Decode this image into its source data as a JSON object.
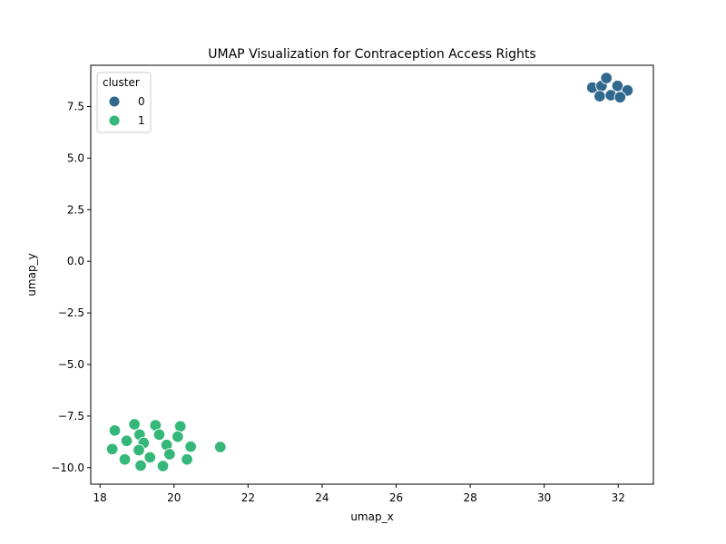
{
  "chart_data": {
    "type": "scatter",
    "title": "UMAP Visualization for Contraception Access Rights",
    "xlabel": "umap_x",
    "ylabel": "umap_y",
    "xlim": [
      17.75,
      32.95
    ],
    "ylim": [
      -10.8,
      9.5
    ],
    "x_ticks": [
      18,
      20,
      22,
      24,
      26,
      28,
      30,
      32
    ],
    "x_tick_labels": [
      "18",
      "20",
      "22",
      "24",
      "26",
      "28",
      "30",
      "32"
    ],
    "y_ticks": [
      -10,
      -7.5,
      -5,
      -2.5,
      0,
      2.5,
      5,
      7.5
    ],
    "y_tick_labels": [
      "−10.0",
      "−7.5",
      "−5.0",
      "−2.5",
      "0.0",
      "2.5",
      "5.0",
      "7.5"
    ],
    "grid": false,
    "legend": {
      "title": "cluster",
      "placement": "top-left",
      "entries": [
        "0",
        "1"
      ]
    },
    "series": [
      {
        "name": "0",
        "color": "#31688e",
        "points": [
          [
            31.3,
            8.42
          ],
          [
            31.55,
            8.5
          ],
          [
            31.68,
            8.88
          ],
          [
            31.98,
            8.5
          ],
          [
            32.25,
            8.28
          ],
          [
            31.5,
            8.0
          ],
          [
            31.8,
            8.05
          ],
          [
            32.05,
            7.95
          ]
        ]
      },
      {
        "name": "1",
        "color": "#35b779",
        "points": [
          [
            18.4,
            -8.2
          ],
          [
            18.93,
            -7.9
          ],
          [
            19.5,
            -7.95
          ],
          [
            20.17,
            -8.0
          ],
          [
            19.07,
            -8.4
          ],
          [
            19.6,
            -8.4
          ],
          [
            20.1,
            -8.5
          ],
          [
            18.72,
            -8.7
          ],
          [
            19.18,
            -8.8
          ],
          [
            19.8,
            -8.9
          ],
          [
            20.45,
            -8.98
          ],
          [
            21.25,
            -9.0
          ],
          [
            18.33,
            -9.1
          ],
          [
            19.05,
            -9.15
          ],
          [
            19.88,
            -9.35
          ],
          [
            19.35,
            -9.5
          ],
          [
            18.67,
            -9.6
          ],
          [
            20.35,
            -9.6
          ],
          [
            19.1,
            -9.9
          ],
          [
            19.7,
            -9.92
          ]
        ]
      }
    ]
  }
}
